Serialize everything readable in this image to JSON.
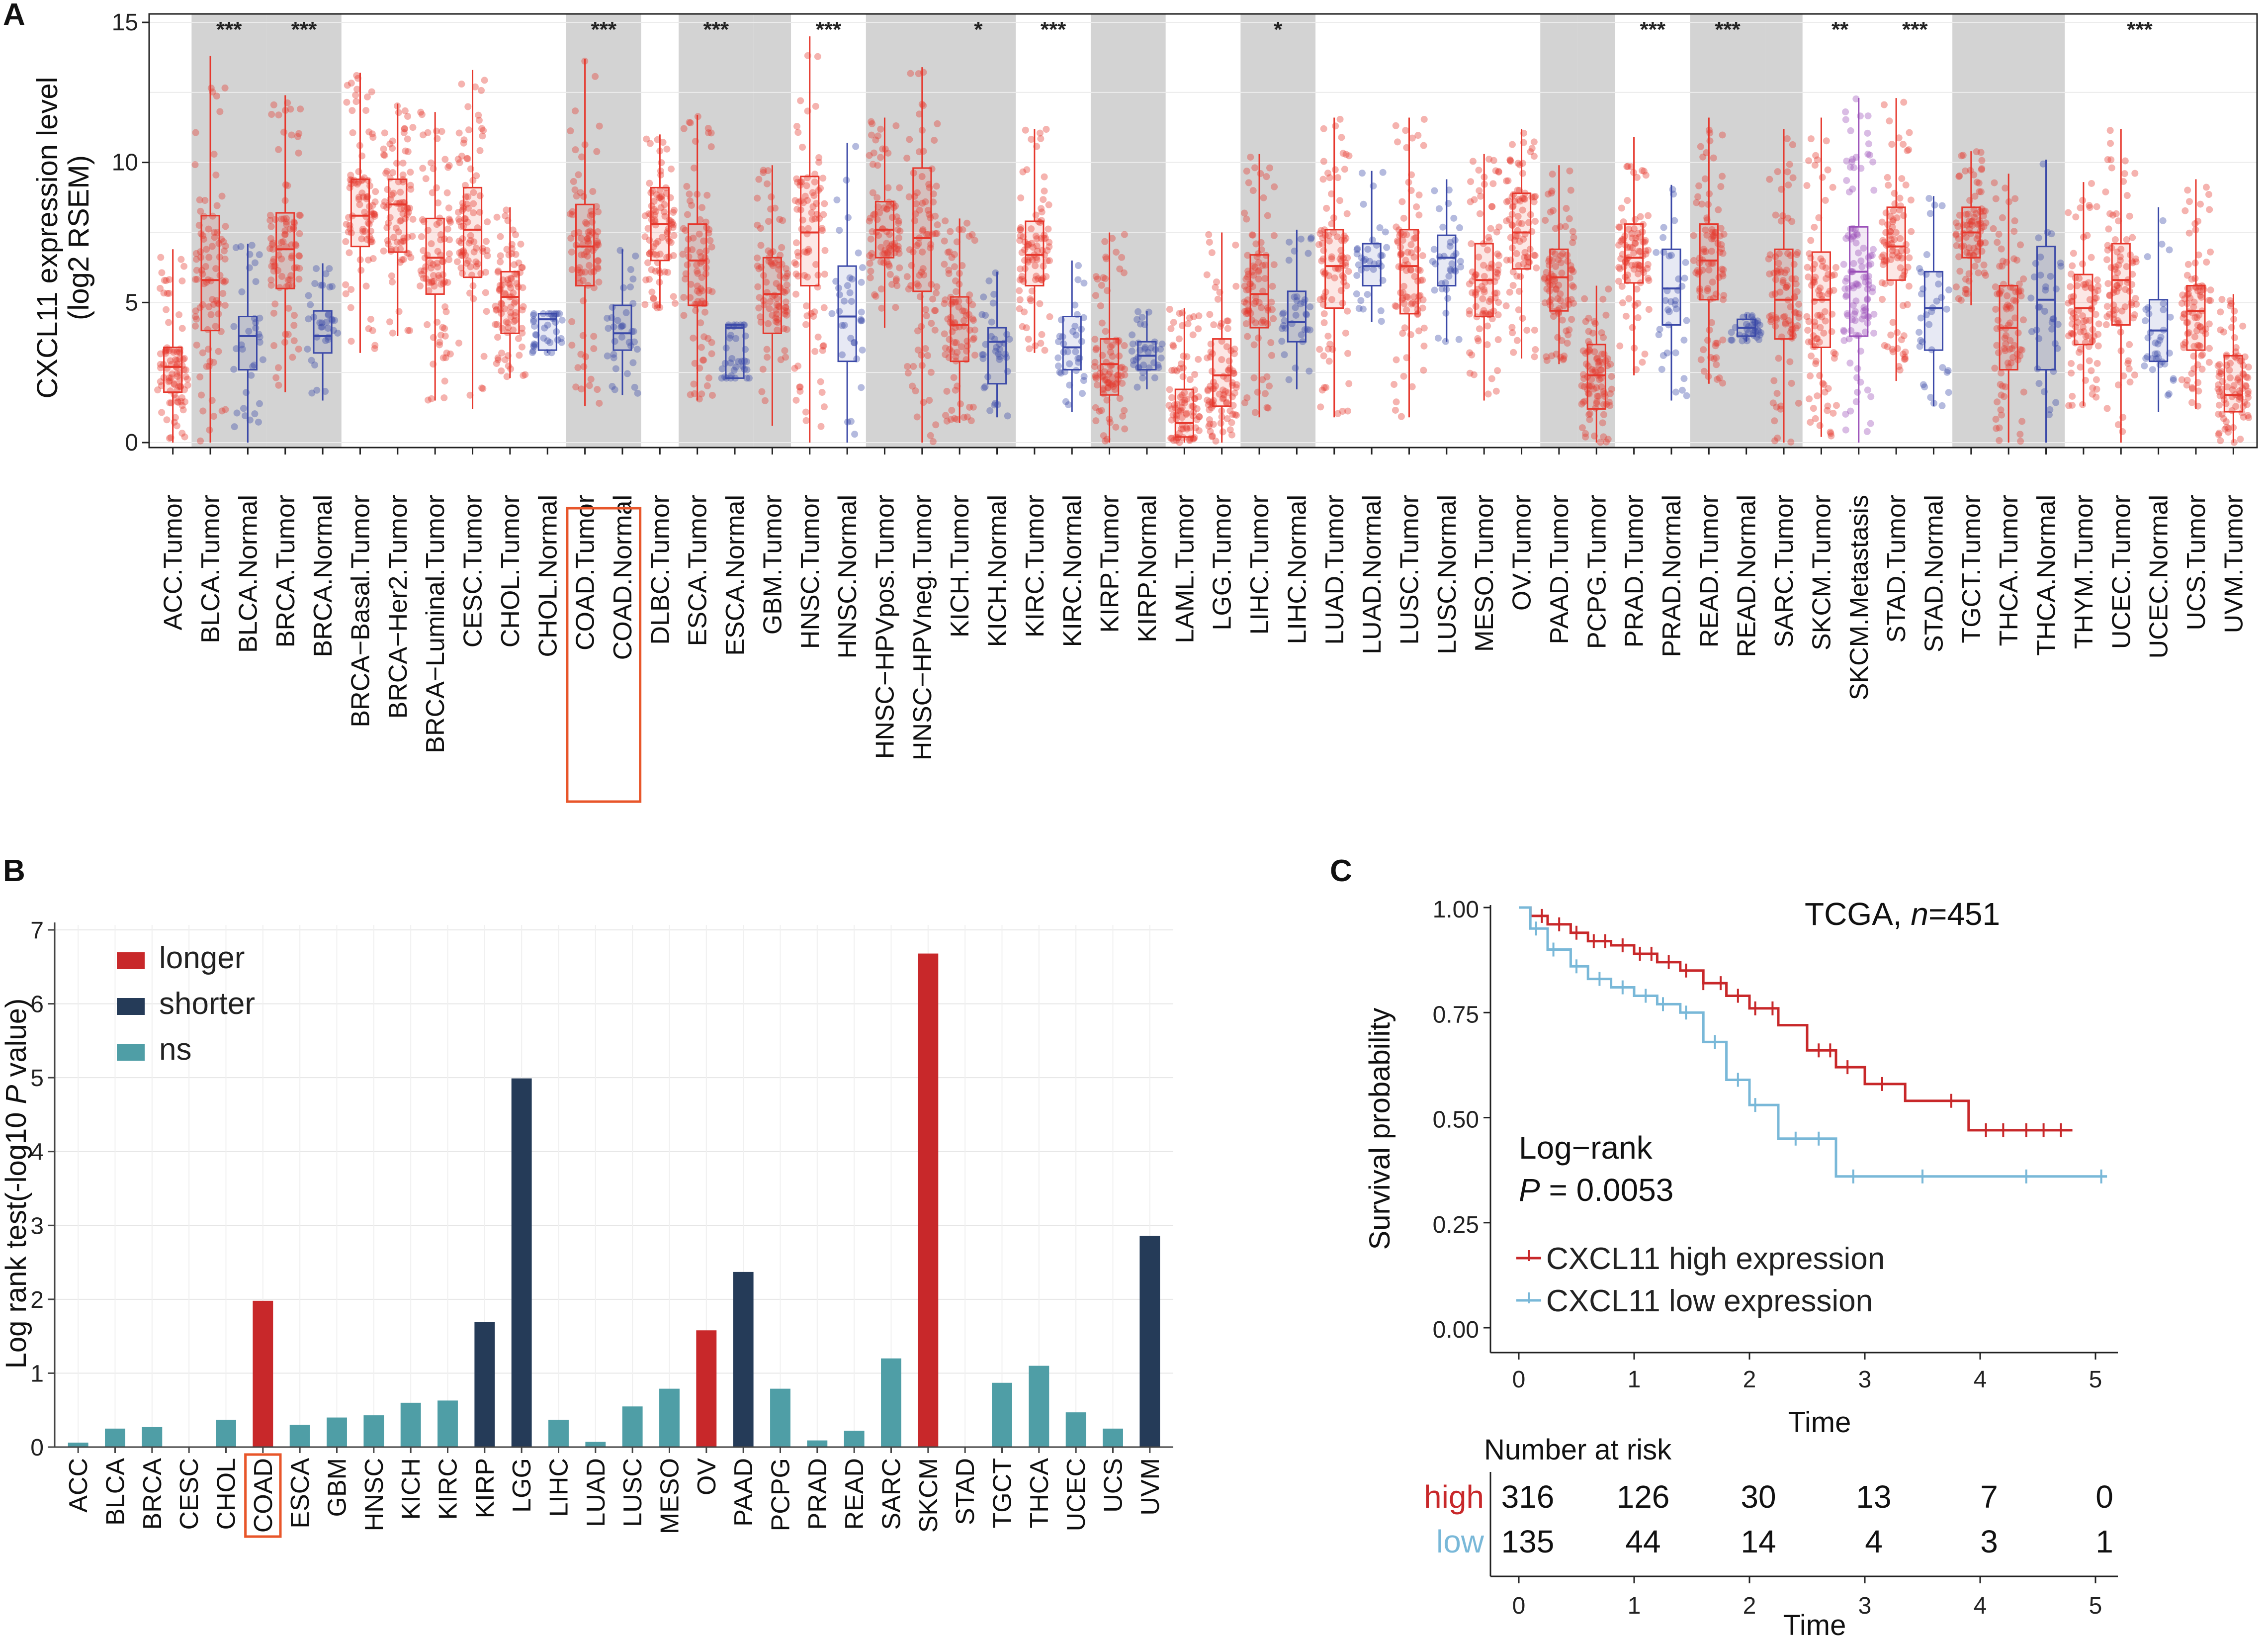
{
  "panels": {
    "a": "A",
    "b": "B",
    "c": "C"
  },
  "chart_data": [
    {
      "type": "box",
      "panel": "A",
      "ylabel_line1": "CXCL11 expression level",
      "ylabel_line2": "(log2 RSEM)",
      "ylim": [
        0,
        15
      ],
      "yticks": [
        "0",
        "5",
        "10",
        "15"
      ],
      "tumor_color": "#e6372c",
      "normal_color": "#3b49a8",
      "metastasis_color": "#9a4fb8",
      "highlight_box_color": "#e8562a",
      "highlighted": [
        "COAD.Tumor",
        "COAD.Normal"
      ],
      "shaded_groups": [
        1,
        2,
        6,
        8,
        9,
        11,
        12,
        14,
        17,
        22,
        23,
        25,
        26,
        29,
        30
      ],
      "categories": [
        {
          "label": "ACC.Tumor",
          "group": 0,
          "kind": "tumor",
          "median": 2.7,
          "q1": 1.8,
          "q3": 3.4,
          "lo": 0.0,
          "hi": 6.9,
          "sig": ""
        },
        {
          "label": "BLCA.Tumor",
          "group": 1,
          "kind": "tumor",
          "median": 5.8,
          "q1": 4.0,
          "q3": 8.1,
          "lo": 0.0,
          "hi": 13.8,
          "sig": "***"
        },
        {
          "label": "BLCA.Normal",
          "group": 1,
          "kind": "normal",
          "median": 3.8,
          "q1": 2.6,
          "q3": 4.5,
          "lo": 0.0,
          "hi": 7.1,
          "sig": ""
        },
        {
          "label": "BRCA.Tumor",
          "group": 2,
          "kind": "tumor",
          "median": 6.9,
          "q1": 5.5,
          "q3": 8.2,
          "lo": 1.8,
          "hi": 12.4,
          "sig": "***"
        },
        {
          "label": "BRCA.Normal",
          "group": 2,
          "kind": "normal",
          "median": 3.8,
          "q1": 3.2,
          "q3": 4.7,
          "lo": 1.5,
          "hi": 6.4,
          "sig": ""
        },
        {
          "label": "BRCA−Basal.Tumor",
          "group": 3,
          "kind": "tumor",
          "median": 8.1,
          "q1": 7.0,
          "q3": 9.4,
          "lo": 3.2,
          "hi": 13.2,
          "sig": ""
        },
        {
          "label": "BRCA−Her2.Tumor",
          "group": 3,
          "kind": "tumor",
          "median": 8.5,
          "q1": 6.8,
          "q3": 9.4,
          "lo": 3.8,
          "hi": 12.1,
          "sig": ""
        },
        {
          "label": "BRCA−Luminal.Tumor",
          "group": 3,
          "kind": "tumor",
          "median": 6.6,
          "q1": 5.3,
          "q3": 8.0,
          "lo": 1.5,
          "hi": 11.8,
          "sig": ""
        },
        {
          "label": "CESC.Tumor",
          "group": 4,
          "kind": "tumor",
          "median": 7.6,
          "q1": 5.9,
          "q3": 9.1,
          "lo": 1.2,
          "hi": 13.3,
          "sig": ""
        },
        {
          "label": "CHOL.Tumor",
          "group": 5,
          "kind": "tumor",
          "median": 5.2,
          "q1": 3.9,
          "q3": 6.1,
          "lo": 2.3,
          "hi": 8.4,
          "sig": ""
        },
        {
          "label": "CHOL.Normal",
          "group": 5,
          "kind": "normal",
          "median": 4.4,
          "q1": 3.3,
          "q3": 4.6,
          "lo": 3.2,
          "hi": 4.6,
          "sig": ""
        },
        {
          "label": "COAD.Tumor",
          "group": 6,
          "kind": "tumor",
          "median": 7.0,
          "q1": 5.6,
          "q3": 8.5,
          "lo": 1.3,
          "hi": 13.7,
          "sig": "***"
        },
        {
          "label": "COAD.Normal",
          "group": 6,
          "kind": "normal",
          "median": 3.9,
          "q1": 3.3,
          "q3": 4.9,
          "lo": 1.7,
          "hi": 6.9,
          "sig": ""
        },
        {
          "label": "DLBC.Tumor",
          "group": 7,
          "kind": "tumor",
          "median": 7.8,
          "q1": 6.5,
          "q3": 9.1,
          "lo": 4.8,
          "hi": 11.0,
          "sig": ""
        },
        {
          "label": "ESCA.Tumor",
          "group": 8,
          "kind": "tumor",
          "median": 6.5,
          "q1": 4.9,
          "q3": 7.8,
          "lo": 1.5,
          "hi": 11.7,
          "sig": "***"
        },
        {
          "label": "ESCA.Normal",
          "group": 8,
          "kind": "normal",
          "median": 4.1,
          "q1": 2.3,
          "q3": 4.2,
          "lo": 2.3,
          "hi": 4.2,
          "sig": ""
        },
        {
          "label": "GBM.Tumor",
          "group": 9,
          "kind": "tumor",
          "median": 5.3,
          "q1": 3.9,
          "q3": 6.6,
          "lo": 0.6,
          "hi": 9.9,
          "sig": ""
        },
        {
          "label": "HNSC.Tumor",
          "group": 10,
          "kind": "tumor",
          "median": 7.5,
          "q1": 5.6,
          "q3": 9.5,
          "lo": 0.0,
          "hi": 14.5,
          "sig": "***"
        },
        {
          "label": "HNSC.Normal",
          "group": 10,
          "kind": "normal",
          "median": 4.5,
          "q1": 2.9,
          "q3": 6.3,
          "lo": 0.0,
          "hi": 10.7,
          "sig": ""
        },
        {
          "label": "HNSC−HPVpos.Tumor",
          "group": 11,
          "kind": "tumor",
          "median": 7.6,
          "q1": 6.6,
          "q3": 8.6,
          "lo": 4.1,
          "hi": 11.6,
          "sig": ""
        },
        {
          "label": "HNSC−HPVneg.Tumor",
          "group": 11,
          "kind": "tumor",
          "median": 7.3,
          "q1": 5.4,
          "q3": 9.8,
          "lo": 0.0,
          "hi": 13.4,
          "sig": ""
        },
        {
          "label": "KICH.Tumor",
          "group": 12,
          "kind": "tumor",
          "median": 4.2,
          "q1": 2.9,
          "q3": 5.2,
          "lo": 0.7,
          "hi": 8.0,
          "sig": "*"
        },
        {
          "label": "KICH.Normal",
          "group": 12,
          "kind": "normal",
          "median": 3.6,
          "q1": 2.1,
          "q3": 4.1,
          "lo": 0.9,
          "hi": 6.1,
          "sig": ""
        },
        {
          "label": "KIRC.Tumor",
          "group": 13,
          "kind": "tumor",
          "median": 6.7,
          "q1": 5.6,
          "q3": 7.9,
          "lo": 3.2,
          "hi": 11.2,
          "sig": "***"
        },
        {
          "label": "KIRC.Normal",
          "group": 13,
          "kind": "normal",
          "median": 3.4,
          "q1": 2.6,
          "q3": 4.5,
          "lo": 1.1,
          "hi": 6.5,
          "sig": ""
        },
        {
          "label": "KIRP.Tumor",
          "group": 14,
          "kind": "tumor",
          "median": 2.8,
          "q1": 1.7,
          "q3": 3.7,
          "lo": 0.0,
          "hi": 7.5,
          "sig": ""
        },
        {
          "label": "KIRP.Normal",
          "group": 14,
          "kind": "normal",
          "median": 3.1,
          "q1": 2.6,
          "q3": 3.6,
          "lo": 1.9,
          "hi": 4.7,
          "sig": ""
        },
        {
          "label": "LAML.Tumor",
          "group": 15,
          "kind": "tumor",
          "median": 0.7,
          "q1": 0.2,
          "q3": 1.9,
          "lo": 0.0,
          "hi": 4.8,
          "sig": ""
        },
        {
          "label": "LGG.Tumor",
          "group": 16,
          "kind": "tumor",
          "median": 2.4,
          "q1": 1.3,
          "q3": 3.7,
          "lo": 0.0,
          "hi": 7.5,
          "sig": ""
        },
        {
          "label": "LIHC.Tumor",
          "group": 17,
          "kind": "tumor",
          "median": 5.3,
          "q1": 4.1,
          "q3": 6.7,
          "lo": 0.9,
          "hi": 10.3,
          "sig": "*"
        },
        {
          "label": "LIHC.Normal",
          "group": 17,
          "kind": "normal",
          "median": 4.3,
          "q1": 3.6,
          "q3": 5.4,
          "lo": 1.9,
          "hi": 7.6,
          "sig": ""
        },
        {
          "label": "LUAD.Tumor",
          "group": 18,
          "kind": "tumor",
          "median": 6.3,
          "q1": 4.8,
          "q3": 7.6,
          "lo": 0.9,
          "hi": 11.6,
          "sig": ""
        },
        {
          "label": "LUAD.Normal",
          "group": 18,
          "kind": "normal",
          "median": 6.3,
          "q1": 5.6,
          "q3": 7.1,
          "lo": 4.3,
          "hi": 9.7,
          "sig": ""
        },
        {
          "label": "LUSC.Tumor",
          "group": 19,
          "kind": "tumor",
          "median": 6.3,
          "q1": 4.6,
          "q3": 7.6,
          "lo": 0.9,
          "hi": 11.6,
          "sig": ""
        },
        {
          "label": "LUSC.Normal",
          "group": 19,
          "kind": "normal",
          "median": 6.6,
          "q1": 5.6,
          "q3": 7.4,
          "lo": 3.6,
          "hi": 9.4,
          "sig": ""
        },
        {
          "label": "MESO.Tumor",
          "group": 20,
          "kind": "tumor",
          "median": 5.8,
          "q1": 4.5,
          "q3": 7.1,
          "lo": 1.5,
          "hi": 10.3,
          "sig": ""
        },
        {
          "label": "OV.Tumor",
          "group": 21,
          "kind": "tumor",
          "median": 7.5,
          "q1": 6.2,
          "q3": 8.9,
          "lo": 3.0,
          "hi": 11.2,
          "sig": ""
        },
        {
          "label": "PAAD.Tumor",
          "group": 22,
          "kind": "tumor",
          "median": 5.9,
          "q1": 4.7,
          "q3": 6.9,
          "lo": 2.8,
          "hi": 9.9,
          "sig": ""
        },
        {
          "label": "PCPG.Tumor",
          "group": 23,
          "kind": "tumor",
          "median": 2.4,
          "q1": 1.2,
          "q3": 3.5,
          "lo": 0.0,
          "hi": 5.6,
          "sig": ""
        },
        {
          "label": "PRAD.Tumor",
          "group": 24,
          "kind": "tumor",
          "median": 6.6,
          "q1": 5.7,
          "q3": 7.8,
          "lo": 2.4,
          "hi": 10.9,
          "sig": "***"
        },
        {
          "label": "PRAD.Normal",
          "group": 24,
          "kind": "normal",
          "median": 5.5,
          "q1": 4.2,
          "q3": 6.9,
          "lo": 1.5,
          "hi": 9.2,
          "sig": ""
        },
        {
          "label": "READ.Tumor",
          "group": 25,
          "kind": "tumor",
          "median": 6.5,
          "q1": 5.1,
          "q3": 7.8,
          "lo": 2.1,
          "hi": 11.6,
          "sig": "***"
        },
        {
          "label": "READ.Normal",
          "group": 25,
          "kind": "normal",
          "median": 4.1,
          "q1": 3.8,
          "q3": 4.4,
          "lo": 3.6,
          "hi": 4.6,
          "sig": ""
        },
        {
          "label": "SARC.Tumor",
          "group": 26,
          "kind": "tumor",
          "median": 5.1,
          "q1": 3.7,
          "q3": 6.9,
          "lo": 0.0,
          "hi": 11.2,
          "sig": ""
        },
        {
          "label": "SKCM.Tumor",
          "group": 27,
          "kind": "tumor",
          "median": 5.1,
          "q1": 3.4,
          "q3": 6.8,
          "lo": 0.2,
          "hi": 11.6,
          "sig": "**"
        },
        {
          "label": "SKCM.Metastasis",
          "group": 27,
          "kind": "metastasis",
          "median": 6.1,
          "q1": 3.8,
          "q3": 7.7,
          "lo": 0.0,
          "hi": 12.3,
          "sig": ""
        },
        {
          "label": "STAD.Tumor",
          "group": 28,
          "kind": "tumor",
          "median": 7.0,
          "q1": 5.8,
          "q3": 8.4,
          "lo": 2.2,
          "hi": 12.3,
          "sig": "***"
        },
        {
          "label": "STAD.Normal",
          "group": 28,
          "kind": "normal",
          "median": 4.8,
          "q1": 3.3,
          "q3": 6.1,
          "lo": 1.3,
          "hi": 8.8,
          "sig": ""
        },
        {
          "label": "TGCT.Tumor",
          "group": 29,
          "kind": "tumor",
          "median": 7.5,
          "q1": 6.6,
          "q3": 8.4,
          "lo": 4.9,
          "hi": 10.4,
          "sig": ""
        },
        {
          "label": "THCA.Tumor",
          "group": 30,
          "kind": "tumor",
          "median": 4.1,
          "q1": 2.6,
          "q3": 5.6,
          "lo": 0.0,
          "hi": 9.6,
          "sig": ""
        },
        {
          "label": "THCA.Normal",
          "group": 30,
          "kind": "normal",
          "median": 5.1,
          "q1": 2.6,
          "q3": 7.0,
          "lo": 0.0,
          "hi": 10.1,
          "sig": ""
        },
        {
          "label": "THYM.Tumor",
          "group": 31,
          "kind": "tumor",
          "median": 4.8,
          "q1": 3.5,
          "q3": 6.0,
          "lo": 1.3,
          "hi": 9.3,
          "sig": ""
        },
        {
          "label": "UCEC.Tumor",
          "group": 32,
          "kind": "tumor",
          "median": 5.8,
          "q1": 4.2,
          "q3": 7.1,
          "lo": 0.0,
          "hi": 11.2,
          "sig": "***"
        },
        {
          "label": "UCEC.Normal",
          "group": 32,
          "kind": "normal",
          "median": 4.0,
          "q1": 2.9,
          "q3": 5.1,
          "lo": 1.1,
          "hi": 8.4,
          "sig": ""
        },
        {
          "label": "UCS.Tumor",
          "group": 33,
          "kind": "tumor",
          "median": 4.7,
          "q1": 3.3,
          "q3": 5.6,
          "lo": 1.2,
          "hi": 9.4,
          "sig": ""
        },
        {
          "label": "UVM.Tumor",
          "group": 34,
          "kind": "tumor",
          "median": 1.7,
          "q1": 1.1,
          "q3": 3.1,
          "lo": 0.0,
          "hi": 5.3,
          "sig": ""
        }
      ]
    },
    {
      "type": "bar",
      "panel": "B",
      "ylabel_pre": "Log rank test(-log10 ",
      "ylabel_italic": "P",
      "ylabel_post": " value)",
      "ylim": [
        0,
        7
      ],
      "yticks": [
        "0",
        "1",
        "2",
        "3",
        "4",
        "5",
        "6",
        "7"
      ],
      "highlighted": "COAD",
      "highlight_box_color": "#e8562a",
      "legend": [
        {
          "key": "longer",
          "label": "longer",
          "color": "#c8282a"
        },
        {
          "key": "shorter",
          "label": "shorter",
          "color": "#253b58"
        },
        {
          "key": "ns",
          "label": "ns",
          "color": "#4f9ea6"
        }
      ],
      "categories": [
        "ACC",
        "BLCA",
        "BRCA",
        "CESC",
        "CHOL",
        "COAD",
        "ESCA",
        "GBM",
        "HNSC",
        "KICH",
        "KIRC",
        "KIRP",
        "LGG",
        "LIHC",
        "LUAD",
        "LUSC",
        "MESO",
        "OV",
        "PAAD",
        "PCPG",
        "PRAD",
        "READ",
        "SARC",
        "SKCM",
        "STAD",
        "TGCT",
        "THCA",
        "UCEC",
        "UCS",
        "UVM"
      ],
      "values": [
        0.06,
        0.25,
        0.27,
        0.0,
        0.37,
        1.98,
        0.3,
        0.4,
        0.43,
        0.6,
        0.63,
        1.69,
        4.99,
        0.37,
        0.07,
        0.55,
        0.79,
        1.58,
        2.37,
        0.79,
        0.09,
        0.22,
        1.2,
        6.68,
        0.0,
        0.87,
        1.1,
        0.47,
        0.25,
        2.86
      ],
      "status": [
        "ns",
        "ns",
        "ns",
        "ns",
        "ns",
        "longer",
        "ns",
        "ns",
        "ns",
        "ns",
        "ns",
        "shorter",
        "shorter",
        "ns",
        "ns",
        "ns",
        "ns",
        "longer",
        "shorter",
        "ns",
        "ns",
        "ns",
        "ns",
        "longer",
        "ns",
        "ns",
        "ns",
        "ns",
        "ns",
        "shorter"
      ]
    },
    {
      "type": "line",
      "panel": "C",
      "subtype": "kaplan-meier",
      "title_pre": "TCGA, ",
      "title_italic": "n",
      "title_post": "=451",
      "ylabel": "Survival probability",
      "xlabel": "Time",
      "xlim": [
        0,
        5
      ],
      "ylim": [
        0,
        1
      ],
      "xticks": [
        "0",
        "1",
        "2",
        "3",
        "4",
        "5"
      ],
      "yticks": [
        "0.00",
        "0.25",
        "0.50",
        "0.75",
        "1.00"
      ],
      "stat_line1": "Log−rank",
      "stat_p": "P",
      "stat_rest": " = 0.0053",
      "series": [
        {
          "name": "CXCL11 high expression",
          "color": "#c8282a",
          "x": [
            0,
            0.1,
            0.25,
            0.45,
            0.6,
            0.8,
            1.0,
            1.2,
            1.4,
            1.6,
            1.8,
            2.0,
            2.25,
            2.5,
            2.75,
            3.0,
            3.35,
            3.9,
            4.8
          ],
          "y": [
            1.0,
            0.98,
            0.96,
            0.94,
            0.92,
            0.91,
            0.89,
            0.87,
            0.85,
            0.82,
            0.79,
            0.76,
            0.72,
            0.66,
            0.62,
            0.58,
            0.54,
            0.47,
            0.47
          ],
          "censor_x": [
            0.2,
            0.35,
            0.5,
            0.65,
            0.75,
            0.9,
            1.05,
            1.15,
            1.3,
            1.45,
            1.6,
            1.75,
            1.9,
            2.05,
            2.2,
            2.6,
            2.7,
            2.85,
            3.15,
            3.75,
            4.05,
            4.2,
            4.4,
            4.55,
            4.7
          ]
        },
        {
          "name": "CXCL11 low expression",
          "color": "#79b8d8",
          "x": [
            0,
            0.1,
            0.25,
            0.45,
            0.6,
            0.8,
            1.0,
            1.2,
            1.4,
            1.6,
            1.8,
            2.0,
            2.25,
            2.75,
            5.1
          ],
          "y": [
            1.0,
            0.95,
            0.9,
            0.86,
            0.83,
            0.81,
            0.79,
            0.77,
            0.75,
            0.68,
            0.59,
            0.53,
            0.45,
            0.36,
            0.36
          ],
          "censor_x": [
            0.15,
            0.3,
            0.5,
            0.7,
            0.9,
            1.1,
            1.25,
            1.45,
            1.7,
            1.9,
            2.05,
            2.4,
            2.6,
            2.9,
            3.5,
            4.4,
            5.05
          ]
        }
      ],
      "risk_table": {
        "title": "Number at risk",
        "xlabel": "Time",
        "xticks": [
          "0",
          "1",
          "2",
          "3",
          "4",
          "5"
        ],
        "rows": [
          {
            "name": "high",
            "color": "#c8282a",
            "values": [
              "316",
              "126",
              "30",
              "13",
              "7",
              "0"
            ]
          },
          {
            "name": "low",
            "color": "#79b8d8",
            "values": [
              "135",
              "44",
              "14",
              "4",
              "3",
              "1"
            ]
          }
        ]
      }
    }
  ]
}
